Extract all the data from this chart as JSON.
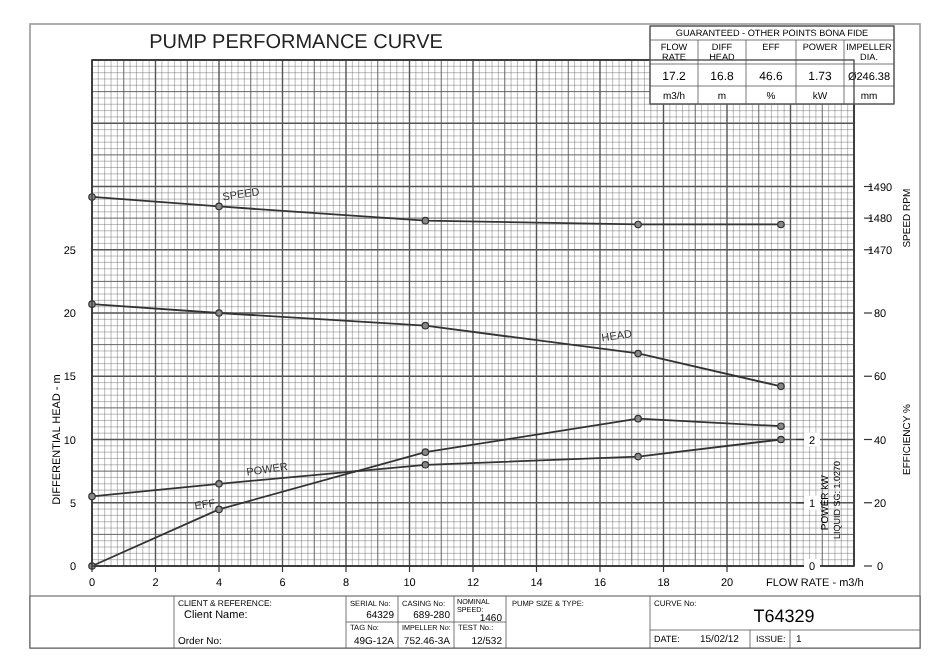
{
  "chart_data": [
    {
      "type": "line",
      "title": "PUMP PERFORMANCE CURVE",
      "xlabel": "FLOW RATE - m3/h",
      "ylabel": "DIFFERENTIAL HEAD - m",
      "y2label": "SPEED RPM",
      "y3label": "EFFICIENCY %",
      "x": [
        0,
        4,
        10.5,
        17.2,
        21.7
      ],
      "xlim": [
        0,
        24
      ],
      "xticks": [
        0,
        2,
        4,
        6,
        8,
        10,
        12,
        14,
        16,
        18,
        20
      ],
      "ylim": [
        0,
        40
      ],
      "yticks": [
        0,
        5,
        10,
        15,
        20,
        25
      ],
      "y2lim": [
        1370,
        1530
      ],
      "y2ticks": [
        1470,
        1480,
        1490
      ],
      "y3lim": [
        0,
        160
      ],
      "y3ticks": [
        0,
        20,
        40,
        60,
        80
      ],
      "grid": true,
      "marker": "circle",
      "line_style": "solid",
      "series": [
        {
          "name": "SPEED",
          "color": "#333333",
          "axis": "y2",
          "values": [
            1486.7,
            1483.7,
            1479.2,
            1478,
            1478
          ]
        },
        {
          "name": "HEAD",
          "color": "#333333",
          "values": [
            20.7,
            20.0,
            19.0,
            16.8,
            14.2
          ]
        },
        {
          "name": "EFF",
          "color": "#333333",
          "axis": "y3",
          "values": [
            0,
            17.9,
            36,
            46.6,
            44.2
          ]
        }
      ],
      "annotations": [
        "GUARANTEED - OTHER POINTS BONA FIDE",
        "FLOW RATE",
        "DIFF HEAD",
        "EFF",
        "POWER",
        "IMPELLER DIA.",
        "17.2",
        "16.8",
        "46.6",
        "1.73",
        "Ø246.38",
        "m3/h",
        "m",
        "%",
        "kW",
        "mm",
        "CLIENT & REFERENCE:",
        "Client Name:",
        "Order No:",
        "SERIAL No:",
        "64329",
        "TAG No:",
        "49G-12A",
        "CASING No:",
        "689-280",
        "IMPELLER No:",
        "752.46-3A",
        "NOMINAL SPEED:",
        "1460",
        "TEST No.:",
        "12/532",
        "PUMP SIZE & TYPE:",
        "CURVE No:",
        "T64329",
        "DATE:",
        "15/02/12",
        "ISSUE:",
        "1"
      ]
    },
    {
      "type": "line",
      "ylabel": "POWER kW",
      "x": [
        0,
        4,
        10.5,
        17.2,
        21.7
      ],
      "xlim": [
        0,
        24
      ],
      "ylim": [
        0,
        8
      ],
      "yticks": [
        0,
        1,
        2
      ],
      "tick_labels": "y",
      "marker": "circle",
      "line_style": "solid",
      "series": [
        {
          "name": "POWER",
          "color": "#333333",
          "values": [
            1.1,
            1.3,
            1.6,
            1.73,
            2.0
          ]
        }
      ],
      "annotations": [
        "LIQUID SG: 1.0270"
      ]
    }
  ]
}
